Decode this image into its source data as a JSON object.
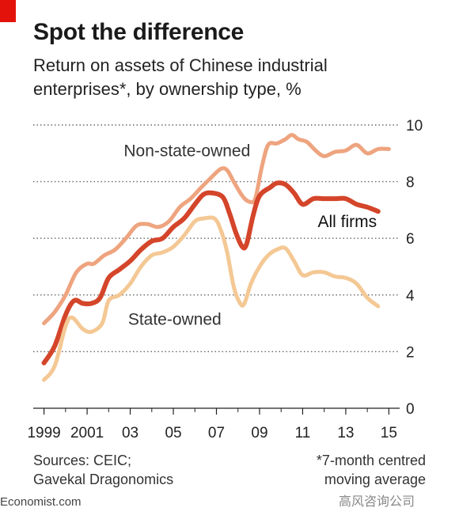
{
  "header": {
    "title": "Spot the difference",
    "subtitle": "Return on assets of Chinese industrial enterprises*, by ownership type, %"
  },
  "footer": {
    "sources_line1": "Sources: CEIC;",
    "sources_line2": "Gavekal Dragonomics",
    "note_line1": "*7-month centred",
    "note_line2": "moving average",
    "credit": "Economist.com",
    "watermark": "高风咨询公司"
  },
  "colors": {
    "non_state_owned": "#eea47f",
    "all_firms": "#d4452a",
    "state_owned": "#f4c894",
    "brand_red": "#e3120b"
  },
  "chart_data": {
    "type": "line",
    "title": "Spot the difference",
    "subtitle": "Return on assets of Chinese industrial enterprises*, by ownership type, %",
    "xlabel": "",
    "ylabel": "",
    "xlim": [
      1998.5,
      2015.5
    ],
    "ylim": [
      0,
      10
    ],
    "grid": true,
    "x_ticks": [
      {
        "x": 1999,
        "label": "1999"
      },
      {
        "x": 2001,
        "label": "2001"
      },
      {
        "x": 2003,
        "label": "03"
      },
      {
        "x": 2005,
        "label": "05"
      },
      {
        "x": 2007,
        "label": "07"
      },
      {
        "x": 2009,
        "label": "09"
      },
      {
        "x": 2011,
        "label": "11"
      },
      {
        "x": 2013,
        "label": "13"
      },
      {
        "x": 2015,
        "label": "15"
      }
    ],
    "y_ticks": [
      {
        "y": 0,
        "label": "0"
      },
      {
        "y": 2,
        "label": "2"
      },
      {
        "y": 4,
        "label": "4"
      },
      {
        "y": 6,
        "label": "6"
      },
      {
        "y": 8,
        "label": "8"
      },
      {
        "y": 10,
        "label": "10"
      }
    ],
    "series": [
      {
        "name": "Non-state-owned",
        "color_key": "non_state_owned",
        "points": [
          [
            1999.0,
            3.0
          ],
          [
            1999.5,
            3.4
          ],
          [
            2000.0,
            4.0
          ],
          [
            2000.5,
            4.8
          ],
          [
            2001.0,
            5.1
          ],
          [
            2001.3,
            5.1
          ],
          [
            2001.8,
            5.4
          ],
          [
            2002.3,
            5.6
          ],
          [
            2002.8,
            6.0
          ],
          [
            2003.3,
            6.45
          ],
          [
            2003.8,
            6.5
          ],
          [
            2004.3,
            6.4
          ],
          [
            2004.8,
            6.6
          ],
          [
            2005.3,
            7.1
          ],
          [
            2005.8,
            7.4
          ],
          [
            2006.3,
            7.8
          ],
          [
            2006.7,
            8.1
          ],
          [
            2007.2,
            8.45
          ],
          [
            2007.5,
            8.4
          ],
          [
            2007.8,
            8.0
          ],
          [
            2008.2,
            7.5
          ],
          [
            2008.5,
            7.3
          ],
          [
            2008.8,
            7.4
          ],
          [
            2009.1,
            8.5
          ],
          [
            2009.4,
            9.3
          ],
          [
            2009.8,
            9.35
          ],
          [
            2010.2,
            9.5
          ],
          [
            2010.5,
            9.65
          ],
          [
            2010.8,
            9.5
          ],
          [
            2011.2,
            9.4
          ],
          [
            2011.6,
            9.1
          ],
          [
            2012.0,
            8.9
          ],
          [
            2012.5,
            9.05
          ],
          [
            2013.0,
            9.1
          ],
          [
            2013.5,
            9.3
          ],
          [
            2014.0,
            9.0
          ],
          [
            2014.5,
            9.15
          ],
          [
            2015.0,
            9.15
          ]
        ]
      },
      {
        "name": "All firms",
        "color_key": "all_firms",
        "points": [
          [
            1999.0,
            1.6
          ],
          [
            1999.5,
            2.2
          ],
          [
            2000.0,
            3.3
          ],
          [
            2000.4,
            3.8
          ],
          [
            2000.8,
            3.7
          ],
          [
            2001.2,
            3.7
          ],
          [
            2001.6,
            3.9
          ],
          [
            2002.0,
            4.6
          ],
          [
            2002.5,
            4.9
          ],
          [
            2003.0,
            5.2
          ],
          [
            2003.5,
            5.6
          ],
          [
            2004.0,
            5.9
          ],
          [
            2004.5,
            6.0
          ],
          [
            2005.0,
            6.4
          ],
          [
            2005.5,
            6.7
          ],
          [
            2006.0,
            7.2
          ],
          [
            2006.4,
            7.55
          ],
          [
            2006.8,
            7.6
          ],
          [
            2007.3,
            7.45
          ],
          [
            2007.6,
            6.9
          ],
          [
            2007.9,
            6.2
          ],
          [
            2008.2,
            5.7
          ],
          [
            2008.4,
            5.8
          ],
          [
            2008.7,
            6.8
          ],
          [
            2009.0,
            7.5
          ],
          [
            2009.5,
            7.8
          ],
          [
            2009.8,
            7.95
          ],
          [
            2010.2,
            7.9
          ],
          [
            2010.6,
            7.6
          ],
          [
            2011.0,
            7.2
          ],
          [
            2011.5,
            7.4
          ],
          [
            2012.0,
            7.4
          ],
          [
            2012.5,
            7.4
          ],
          [
            2013.0,
            7.4
          ],
          [
            2013.5,
            7.2
          ],
          [
            2014.0,
            7.1
          ],
          [
            2014.5,
            6.95
          ]
        ]
      },
      {
        "name": "State-owned",
        "color_key": "state_owned",
        "points": [
          [
            1999.0,
            1.0
          ],
          [
            1999.5,
            1.5
          ],
          [
            2000.0,
            2.9
          ],
          [
            2000.3,
            3.2
          ],
          [
            2000.8,
            2.8
          ],
          [
            2001.2,
            2.7
          ],
          [
            2001.7,
            3.0
          ],
          [
            2002.0,
            3.8
          ],
          [
            2002.5,
            4.0
          ],
          [
            2003.0,
            4.4
          ],
          [
            2003.5,
            5.0
          ],
          [
            2004.0,
            5.4
          ],
          [
            2004.5,
            5.5
          ],
          [
            2005.0,
            5.7
          ],
          [
            2005.5,
            6.1
          ],
          [
            2006.0,
            6.6
          ],
          [
            2006.4,
            6.7
          ],
          [
            2006.9,
            6.7
          ],
          [
            2007.2,
            6.3
          ],
          [
            2007.5,
            5.5
          ],
          [
            2007.8,
            4.3
          ],
          [
            2008.1,
            3.7
          ],
          [
            2008.3,
            3.7
          ],
          [
            2008.6,
            4.4
          ],
          [
            2009.0,
            5.0
          ],
          [
            2009.4,
            5.4
          ],
          [
            2009.8,
            5.6
          ],
          [
            2010.2,
            5.65
          ],
          [
            2010.6,
            5.2
          ],
          [
            2011.0,
            4.7
          ],
          [
            2011.5,
            4.8
          ],
          [
            2012.0,
            4.8
          ],
          [
            2012.5,
            4.65
          ],
          [
            2013.0,
            4.6
          ],
          [
            2013.5,
            4.4
          ],
          [
            2014.0,
            3.9
          ],
          [
            2014.5,
            3.6
          ]
        ]
      }
    ],
    "annotations": [
      {
        "text": "Non-state-owned",
        "x": 2002.7,
        "y": 8.9,
        "series": "Non-state-owned"
      },
      {
        "text": "All firms",
        "x": 2011.7,
        "y": 6.4,
        "series": "All firms"
      },
      {
        "text": "State-owned",
        "x": 2002.9,
        "y": 2.95,
        "series": "State-owned"
      }
    ]
  }
}
